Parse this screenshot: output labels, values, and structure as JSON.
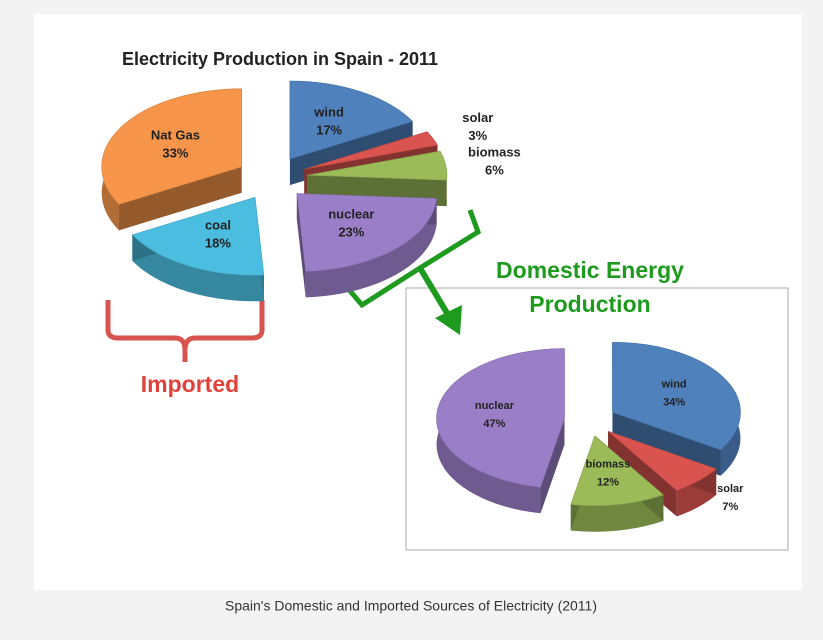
{
  "chart_data": [
    {
      "type": "pie",
      "title": "Electricity Production in Spain - 2011",
      "categories": [
        "wind",
        "solar",
        "biomass",
        "nuclear",
        "coal",
        "Nat Gas"
      ],
      "values": [
        17,
        3,
        6,
        23,
        18,
        33
      ],
      "value_labels": [
        "17%",
        "3%",
        "6%",
        "23%",
        "18%",
        "33%"
      ],
      "colors": [
        "#4f81bd",
        "#d9534f",
        "#9bbb59",
        "#9a7fc8",
        "#4bbde0",
        "#f7964a"
      ],
      "annotation": "Imported"
    },
    {
      "type": "pie",
      "title": "Domestic Energy Production",
      "categories": [
        "wind",
        "solar",
        "biomass",
        "nuclear"
      ],
      "values": [
        34,
        7,
        12,
        47
      ],
      "value_labels": [
        "34%",
        "7%",
        "12%",
        "47%"
      ],
      "colors": [
        "#4f81bd",
        "#d9534f",
        "#9bbb59",
        "#9a7fc8"
      ]
    }
  ],
  "caption": "Spain's Domestic and Imported Sources of Electricity (2011)"
}
